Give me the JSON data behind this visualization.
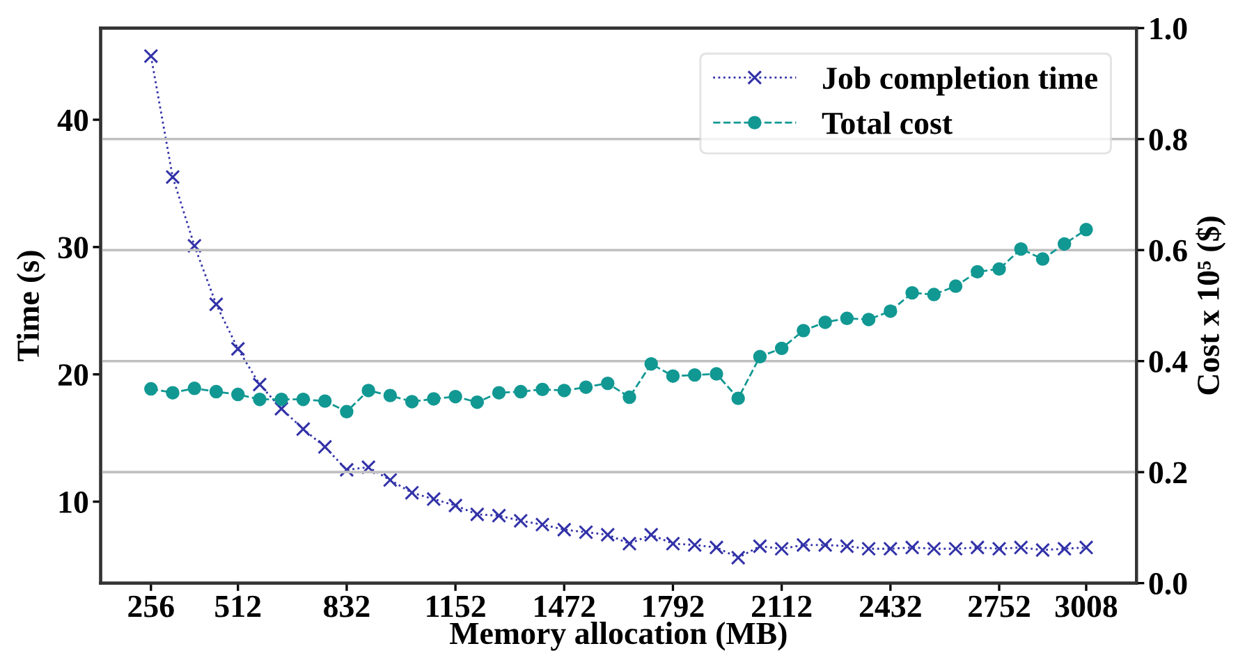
{
  "chart_data": {
    "type": "line",
    "xlabel": "Memory allocation (MB)",
    "ylabel": "Time (s)",
    "y2label": "Cost x 10⁵ ($)",
    "x": [
      256,
      320,
      384,
      448,
      512,
      576,
      640,
      704,
      768,
      832,
      896,
      960,
      1024,
      1088,
      1152,
      1216,
      1280,
      1344,
      1408,
      1472,
      1536,
      1600,
      1664,
      1728,
      1792,
      1856,
      1920,
      1984,
      2048,
      2112,
      2176,
      2240,
      2304,
      2368,
      2432,
      2496,
      2560,
      2624,
      2688,
      2752,
      2816,
      2880,
      2944,
      3008
    ],
    "series": [
      {
        "name": "Job completion time",
        "color": "#3232a8",
        "marker": "cross",
        "line_style": "dotted",
        "values": [
          45.0,
          35.5,
          30.1,
          25.5,
          22.0,
          19.2,
          17.3,
          15.7,
          14.3,
          12.5,
          12.7,
          11.7,
          10.7,
          10.2,
          9.7,
          9.0,
          8.9,
          8.5,
          8.2,
          7.8,
          7.6,
          7.4,
          6.7,
          7.4,
          6.7,
          6.6,
          6.4,
          5.6,
          6.5,
          6.3,
          6.6,
          6.6,
          6.5,
          6.3,
          6.3,
          6.4,
          6.3,
          6.3,
          6.4,
          6.3,
          6.4,
          6.2,
          6.3,
          6.4
        ]
      },
      {
        "name": "Total cost",
        "color": "#129893",
        "marker": "circle",
        "line_style": "dashed",
        "axis": "y2",
        "values": [
          0.35,
          0.343,
          0.351,
          0.345,
          0.34,
          0.331,
          0.331,
          0.331,
          0.328,
          0.309,
          0.347,
          0.338,
          0.327,
          0.332,
          0.336,
          0.326,
          0.343,
          0.345,
          0.349,
          0.347,
          0.353,
          0.36,
          0.335,
          0.395,
          0.373,
          0.375,
          0.377,
          0.333,
          0.408,
          0.423,
          0.455,
          0.47,
          0.477,
          0.475,
          0.49,
          0.523,
          0.52,
          0.535,
          0.561,
          0.566,
          0.602,
          0.584,
          0.611,
          0.637
        ]
      }
    ],
    "xlim": [
      108,
      3156
    ],
    "xticks": [
      256,
      512,
      832,
      1152,
      1472,
      1792,
      2112,
      2432,
      2752,
      3008
    ],
    "ylim": [
      3.6,
      47.2
    ],
    "yticks": [
      10,
      20,
      30,
      40
    ],
    "y2lim": [
      0,
      1
    ],
    "y2ticks": [
      {
        "value": 0,
        "label": "0.0"
      },
      0.2,
      0.4,
      0.6,
      0.8,
      {
        "value": 1,
        "label": "1.0"
      }
    ],
    "grid": "y2",
    "legend": "top right"
  }
}
